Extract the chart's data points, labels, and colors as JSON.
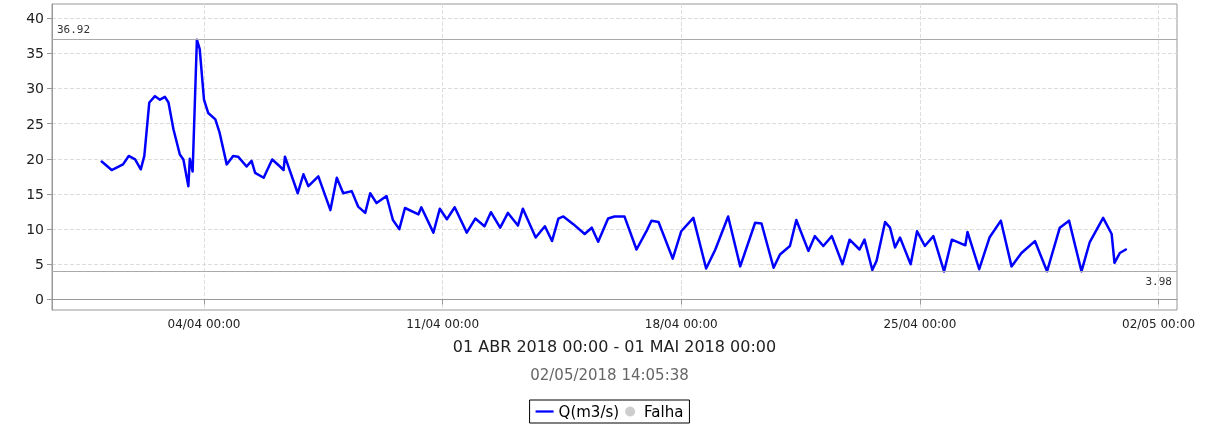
{
  "chart_data": {
    "type": "line",
    "xlabel": "01 ABR 2018 00:00 - 01 MAI 2018 00:00",
    "annotations": [
      "02/05/2018 14:05:38"
    ],
    "x": [
      "2018-04-01T00:00",
      "2018-04-01T07:00",
      "2018-04-01T15:00",
      "2018-04-01T19:00",
      "2018-04-01T23:30",
      "2018-04-02T03:30",
      "2018-04-02T06:00",
      "2018-04-02T09:30",
      "2018-04-02T13:30",
      "2018-04-02T17:00",
      "2018-04-02T20:30",
      "2018-04-02T23:00",
      "2018-04-03T02:30",
      "2018-04-03T07:00",
      "2018-04-03T09:30",
      "2018-04-03T13:00",
      "2018-04-03T14:00",
      "2018-04-03T16:00",
      "2018-04-03T19:00",
      "2018-04-03T21:00",
      "2018-04-04T00:00",
      "2018-04-04T03:00",
      "2018-04-04T08:00",
      "2018-04-04T11:00",
      "2018-04-04T16:00",
      "2018-04-04T20:30",
      "2018-04-05T00:00",
      "2018-04-05T06:00",
      "2018-04-05T09:30",
      "2018-04-05T12:00",
      "2018-04-05T18:00",
      "2018-04-06T00:00",
      "2018-04-06T05:30",
      "2018-04-06T08:00",
      "2018-04-06T09:00",
      "2018-04-06T18:00",
      "2018-04-06T22:00",
      "2018-04-07T01:30",
      "2018-04-07T08:30",
      "2018-04-07T17:00",
      "2018-04-07T21:30",
      "2018-04-08T02:00",
      "2018-04-08T08:00",
      "2018-04-08T12:30",
      "2018-04-08T17:30",
      "2018-04-08T21:00",
      "2018-04-09T01:30",
      "2018-04-09T08:30",
      "2018-04-09T13:00",
      "2018-04-09T17:30",
      "2018-04-09T21:30",
      "2018-04-10T07:00",
      "2018-04-10T09:00",
      "2018-04-10T17:30",
      "2018-04-10T22:00",
      "2018-04-11T03:00",
      "2018-04-11T08:30",
      "2018-04-11T17:00",
      "2018-04-11T23:00",
      "2018-04-12T05:30",
      "2018-04-12T10:00",
      "2018-04-12T16:30",
      "2018-04-12T22:00",
      "2018-04-13T05:00",
      "2018-04-13T08:30",
      "2018-04-13T17:30",
      "2018-04-14T00:00",
      "2018-04-14T05:00",
      "2018-04-14T09:30",
      "2018-04-14T13:00",
      "2018-04-14T20:00",
      "2018-04-15T04:00",
      "2018-04-15T09:00",
      "2018-04-15T13:30",
      "2018-04-15T20:30",
      "2018-04-16T01:00",
      "2018-04-16T08:00",
      "2018-04-16T16:30",
      "2018-04-16T23:30",
      "2018-04-17T03:00",
      "2018-04-17T08:00",
      "2018-04-17T18:00",
      "2018-04-18T00:00",
      "2018-04-18T08:30",
      "2018-04-18T17:30",
      "2018-04-19T00:00",
      "2018-04-19T09:00",
      "2018-04-19T17:30",
      "2018-04-20T04:00",
      "2018-04-20T08:30",
      "2018-04-20T17:00",
      "2018-04-20T21:30",
      "2018-04-21T04:30",
      "2018-04-21T09:00",
      "2018-04-21T17:30",
      "2018-04-21T22:00",
      "2018-04-22T04:00",
      "2018-04-22T10:00",
      "2018-04-22T17:30",
      "2018-04-22T22:30",
      "2018-04-23T05:30",
      "2018-04-23T09:00",
      "2018-04-23T14:30",
      "2018-04-23T17:30",
      "2018-04-23T23:30",
      "2018-04-24T03:00",
      "2018-04-24T06:30",
      "2018-04-24T10:00",
      "2018-04-24T17:30",
      "2018-04-24T22:00",
      "2018-04-25T03:30",
      "2018-04-25T09:30",
      "2018-04-25T17:00",
      "2018-04-25T22:30",
      "2018-04-26T08:00",
      "2018-04-26T09:30",
      "2018-04-26T17:45",
      "2018-04-27T01:00",
      "2018-04-27T09:00",
      "2018-04-27T16:30",
      "2018-04-27T23:30",
      "2018-04-28T09:00",
      "2018-04-28T17:30",
      "2018-04-29T02:30",
      "2018-04-29T09:00",
      "2018-04-29T17:45",
      "2018-04-29T23:30",
      "2018-04-30T09:00",
      "2018-04-30T15:00",
      "2018-04-30T17:00",
      "2018-04-30T20:45",
      "2018-05-01T01:00"
    ],
    "series": [
      {
        "name": "Q(m3/s)",
        "color": "#0000ff",
        "values": [
          19.6,
          18.4,
          19.2,
          20.4,
          19.9,
          18.5,
          20.4,
          28.0,
          28.9,
          28.4,
          28.8,
          28.0,
          24.2,
          20.6,
          19.9,
          16.1,
          20.0,
          18.2,
          36.92,
          35.6,
          28.4,
          26.5,
          25.6,
          23.7,
          19.2,
          20.4,
          20.3,
          18.9,
          19.7,
          18.0,
          17.3,
          19.9,
          18.9,
          18.4,
          20.3,
          15.1,
          17.8,
          16.1,
          17.5,
          12.7,
          17.3,
          15.1,
          15.4,
          13.2,
          12.3,
          15.1,
          13.7,
          14.7,
          11.3,
          10.0,
          13.0,
          12.1,
          13.1,
          9.5,
          12.9,
          11.4,
          13.1,
          9.5,
          11.5,
          10.4,
          12.4,
          10.2,
          12.3,
          10.5,
          12.9,
          8.8,
          10.4,
          8.3,
          11.5,
          11.8,
          10.7,
          9.3,
          10.2,
          8.2,
          11.5,
          11.8,
          11.8,
          7.1,
          9.7,
          11.2,
          11.0,
          5.8,
          9.7,
          11.6,
          4.4,
          7.1,
          11.8,
          4.7,
          10.9,
          10.8,
          4.5,
          6.4,
          7.6,
          11.3,
          6.9,
          9.0,
          7.6,
          9.0,
          5.0,
          8.5,
          7.1,
          8.5,
          4.2,
          5.5,
          11.0,
          10.2,
          7.4,
          8.8,
          5.0,
          9.7,
          7.6,
          9.0,
          3.98,
          8.5,
          7.7,
          9.6,
          4.3,
          8.8,
          11.2,
          4.7,
          6.6,
          8.3,
          4.0,
          10.2,
          11.2,
          4.0,
          8.1,
          11.6,
          9.3,
          5.2,
          6.6,
          7.1
        ]
      },
      {
        "name": "Falha",
        "type": "scatter",
        "color": "#c0c0c0",
        "values": [
          null,
          null,
          null,
          null,
          null,
          null,
          null,
          null,
          null,
          null,
          null,
          null,
          null,
          null,
          null,
          null,
          null,
          null,
          null,
          null,
          null,
          null,
          null,
          null,
          null,
          null,
          null,
          null,
          null,
          null,
          null,
          null,
          null,
          null,
          null,
          null,
          null,
          null,
          null,
          null,
          null,
          null,
          null,
          null,
          null,
          null,
          null,
          null,
          null,
          null,
          null,
          null,
          null,
          null,
          null,
          null,
          null,
          null,
          null,
          null,
          null,
          null,
          null,
          null,
          null,
          null,
          null,
          null,
          null,
          null,
          null,
          null,
          null,
          null,
          null,
          null,
          null,
          null,
          null,
          null,
          null,
          null,
          null,
          null,
          null,
          null,
          null,
          null,
          null,
          null,
          null,
          null,
          null,
          null,
          null,
          null,
          null,
          null,
          null,
          null,
          null,
          null,
          null,
          null,
          null,
          null,
          null,
          null,
          null,
          null,
          null,
          null,
          null,
          null,
          null,
          null,
          null,
          null,
          null,
          null,
          null,
          null,
          null,
          null,
          null,
          null,
          null,
          null,
          null,
          null,
          null,
          null
        ]
      }
    ],
    "xlim": [
      "2018-03-30T13:00",
      "2018-05-02T13:00"
    ],
    "xticks": [
      {
        "value": "2018-04-04",
        "label": "04/04 00:00"
      },
      {
        "value": "2018-04-11",
        "label": "11/04 00:00"
      },
      {
        "value": "2018-04-18",
        "label": "18/04 00:00"
      },
      {
        "value": "2018-04-25",
        "label": "25/04 00:00"
      },
      {
        "value": "2018-05-02",
        "label": "02/05 00:00"
      }
    ],
    "ylim": [
      -1.5,
      42
    ],
    "yticks": [
      0,
      5,
      10,
      15,
      20,
      25,
      30,
      35,
      40
    ],
    "ref_lines": [
      {
        "axis": "y",
        "value": 36.92,
        "label": "36.92",
        "color": "#aaaaaa"
      },
      {
        "axis": "y",
        "value": 3.98,
        "label": "3.98",
        "color": "#aaaaaa"
      }
    ],
    "grid": true,
    "legend": "bottom",
    "marker": "none",
    "line_style": "solid"
  }
}
